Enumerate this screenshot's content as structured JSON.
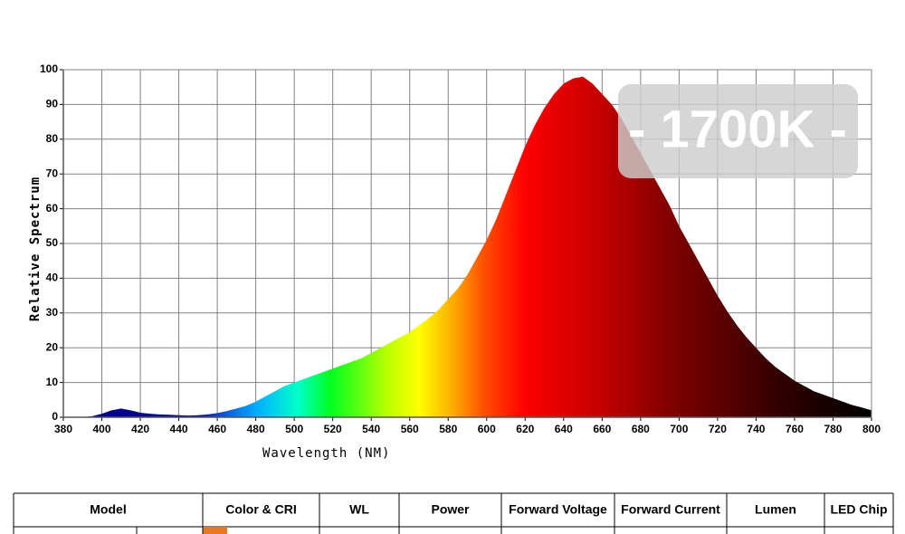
{
  "chart_data": {
    "type": "area",
    "annotation": "- 1700K -",
    "xlabel": "Wavelength (NM)",
    "ylabel": "Relative Spectrum",
    "xlim": [
      380,
      800
    ],
    "ylim": [
      0,
      100
    ],
    "xticks": [
      380,
      400,
      420,
      440,
      460,
      480,
      500,
      520,
      540,
      560,
      580,
      600,
      620,
      640,
      660,
      680,
      700,
      720,
      740,
      760,
      780,
      800
    ],
    "yticks": [
      0,
      10,
      20,
      30,
      40,
      50,
      60,
      70,
      80,
      90,
      100
    ],
    "grid": true,
    "x": [
      380,
      385,
      390,
      395,
      400,
      405,
      410,
      415,
      420,
      425,
      430,
      435,
      440,
      445,
      450,
      455,
      460,
      465,
      470,
      475,
      480,
      485,
      490,
      495,
      500,
      505,
      510,
      515,
      520,
      525,
      530,
      535,
      540,
      545,
      550,
      555,
      560,
      565,
      570,
      575,
      580,
      585,
      590,
      595,
      600,
      605,
      610,
      615,
      620,
      625,
      630,
      635,
      640,
      645,
      650,
      655,
      660,
      665,
      670,
      675,
      680,
      685,
      690,
      695,
      700,
      705,
      710,
      715,
      720,
      725,
      730,
      735,
      740,
      745,
      750,
      755,
      760,
      765,
      770,
      775,
      780,
      785,
      790,
      795,
      800
    ],
    "values": [
      0,
      0,
      0,
      0.3,
      1,
      2,
      2.5,
      2,
      1.3,
      1,
      0.8,
      0.7,
      0.6,
      0.5,
      0.6,
      0.8,
      1.2,
      1.8,
      2.5,
      3.3,
      4.5,
      6,
      7.5,
      9,
      10,
      11,
      12,
      13,
      14,
      15,
      16,
      17,
      18.5,
      20,
      21.5,
      23,
      24.5,
      26.5,
      28.5,
      31,
      34,
      37,
      41,
      46,
      51,
      57,
      64,
      71,
      78,
      84,
      89,
      93,
      96,
      97.5,
      98,
      96,
      93,
      90,
      86,
      81,
      76,
      71,
      66,
      61,
      55,
      50,
      45,
      40,
      35,
      30.5,
      26.5,
      23,
      20,
      17,
      14.5,
      12.5,
      10.5,
      9,
      7.5,
      6.5,
      5.5,
      4.5,
      3.5,
      2.8,
      2
    ]
  },
  "table": {
    "headers": [
      "Model",
      "Color & CRI",
      "WL",
      "Power",
      "Forward Voltage",
      "Forward Current",
      "Lumen",
      "LED Chip"
    ]
  }
}
